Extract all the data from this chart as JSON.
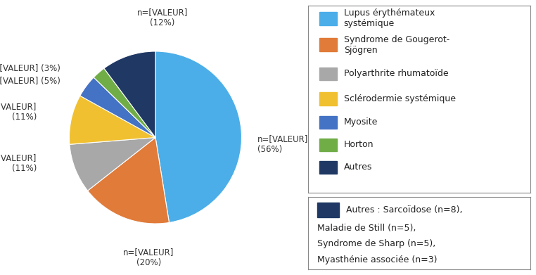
{
  "slices": [
    {
      "label": "Lupus érythémateux systémique",
      "pct": 56,
      "color": "#4BAEE8"
    },
    {
      "label": "Syndrome de Gougerot-Sjögren",
      "pct": 20,
      "color": "#E07B39"
    },
    {
      "label": "Polyarthrite rhumatoïde",
      "pct": 11,
      "color": "#A8A8A8"
    },
    {
      "label": "Sclérodermie systémique",
      "pct": 11,
      "color": "#F0C030"
    },
    {
      "label": "Myosite",
      "pct": 5,
      "color": "#4472C4"
    },
    {
      "label": "Horton",
      "pct": 3,
      "color": "#70AD47"
    },
    {
      "label": "Autres",
      "pct": 12,
      "color": "#1F3864"
    }
  ],
  "legend_labels": [
    "Lupus érythémateux\nsystémique",
    "Syndrome de Gougerot-\nSjögren",
    "Polyarthrite rhumatoïde",
    "Sclérodermie systémique",
    "Myosite",
    "Horton",
    "Autres"
  ],
  "legend_colors": [
    "#4BAEE8",
    "#E07B39",
    "#A8A8A8",
    "#F0C030",
    "#4472C4",
    "#70AD47",
    "#1F3864"
  ],
  "note_color": "#1F3864",
  "note_text": "Autres : Sarcoïdose (n=8),\nMaladie de Still (n=5),\nSyndrome de Sharp (n=5),\nMyasthénie associée (n=3)",
  "background": "#FFFFFF",
  "label_fontsize": 8.5,
  "legend_fontsize": 9,
  "note_fontsize": 9
}
